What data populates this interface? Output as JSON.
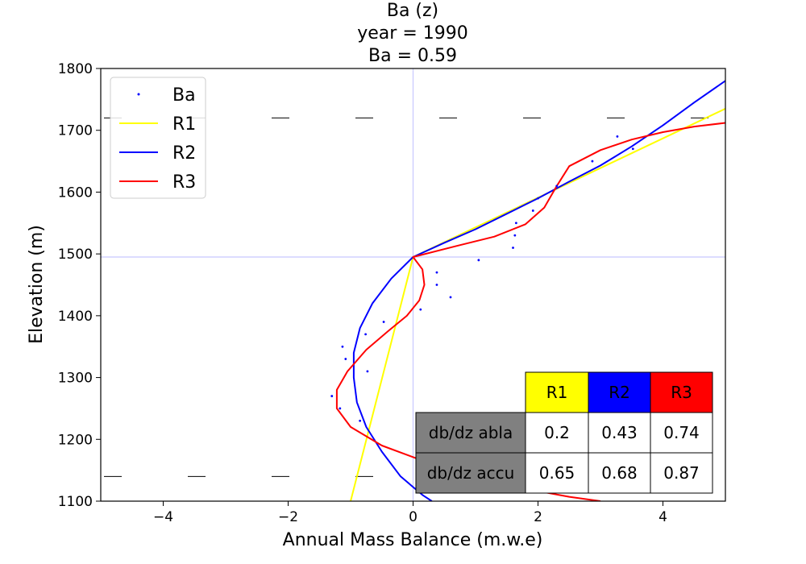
{
  "chart_data": {
    "type": "line",
    "title_lines": [
      "Ba (z)",
      "year = 1990",
      "Ba = 0.59"
    ],
    "xlabel": "Annual Mass Balance (m.w.e)",
    "ylabel": "Elevation (m)",
    "xlim": [
      -5,
      5
    ],
    "ylim": [
      1100,
      1800
    ],
    "xticks": [
      -4,
      -2,
      0,
      2,
      4
    ],
    "xtick_labels": [
      "−4",
      "−2",
      "0",
      "2",
      "4"
    ],
    "yticks": [
      1100,
      1200,
      1300,
      1400,
      1500,
      1600,
      1700,
      1800
    ],
    "ytick_labels": [
      "1100",
      "1200",
      "1300",
      "1400",
      "1500",
      "1600",
      "1700",
      "1800"
    ],
    "ela": 1495,
    "reference_lines": {
      "x": 0,
      "y": 1495,
      "color": "#c8c8ff"
    },
    "dashed_levels": [
      1720,
      1140
    ],
    "legend": {
      "position": "top-left",
      "entries": [
        "Ba",
        "R1",
        "R2",
        "R3"
      ]
    },
    "series": [
      {
        "name": "Ba",
        "kind": "points",
        "color": "#0000ff",
        "points": [
          [
            3.27,
            1690
          ],
          [
            3.52,
            1670
          ],
          [
            2.87,
            1650
          ],
          [
            2.3,
            1610
          ],
          [
            2.0,
            1590
          ],
          [
            1.92,
            1570
          ],
          [
            1.65,
            1550
          ],
          [
            1.63,
            1530
          ],
          [
            1.6,
            1510
          ],
          [
            1.05,
            1490
          ],
          [
            0.38,
            1470
          ],
          [
            0.38,
            1450
          ],
          [
            0.6,
            1430
          ],
          [
            0.12,
            1410
          ],
          [
            -0.47,
            1390
          ],
          [
            -0.76,
            1370
          ],
          [
            -1.13,
            1350
          ],
          [
            -1.08,
            1330
          ],
          [
            -0.73,
            1310
          ],
          [
            -1.3,
            1270
          ],
          [
            -1.17,
            1250
          ],
          [
            -0.85,
            1230
          ],
          [
            0.1,
            1170
          ]
        ]
      },
      {
        "name": "R1",
        "kind": "line",
        "color": "#ffff00",
        "points": [
          [
            -1.0,
            1100
          ],
          [
            0,
            1495
          ],
          [
            5.0,
            1735
          ]
        ]
      },
      {
        "name": "R2",
        "kind": "line",
        "color": "#0000ff",
        "points": [
          [
            5.0,
            1780
          ],
          [
            4.5,
            1745
          ],
          [
            4.0,
            1708
          ],
          [
            3.5,
            1674
          ],
          [
            3.0,
            1643
          ],
          [
            2.5,
            1617
          ],
          [
            2.0,
            1590
          ],
          [
            1.5,
            1565
          ],
          [
            1.0,
            1540
          ],
          [
            0.5,
            1518
          ],
          [
            0.0,
            1495
          ],
          [
            -0.35,
            1460
          ],
          [
            -0.65,
            1420
          ],
          [
            -0.85,
            1380
          ],
          [
            -0.95,
            1340
          ],
          [
            -0.95,
            1300
          ],
          [
            -0.9,
            1260
          ],
          [
            -0.75,
            1220
          ],
          [
            -0.5,
            1180
          ],
          [
            -0.2,
            1140
          ],
          [
            0.15,
            1110
          ],
          [
            0.3,
            1100
          ]
        ]
      },
      {
        "name": "R3",
        "kind": "line",
        "color": "#ff0000",
        "points": [
          [
            5.0,
            1712
          ],
          [
            4.5,
            1706
          ],
          [
            4.0,
            1697
          ],
          [
            3.5,
            1685
          ],
          [
            3.0,
            1668
          ],
          [
            2.5,
            1642
          ],
          [
            2.3,
            1610
          ],
          [
            2.1,
            1575
          ],
          [
            1.8,
            1548
          ],
          [
            1.3,
            1528
          ],
          [
            0.7,
            1513
          ],
          [
            0.0,
            1495
          ],
          [
            0.15,
            1475
          ],
          [
            0.18,
            1450
          ],
          [
            0.1,
            1425
          ],
          [
            -0.1,
            1400
          ],
          [
            -0.4,
            1375
          ],
          [
            -0.75,
            1345
          ],
          [
            -1.05,
            1310
          ],
          [
            -1.22,
            1280
          ],
          [
            -1.22,
            1250
          ],
          [
            -1.0,
            1220
          ],
          [
            -0.5,
            1190
          ],
          [
            0.3,
            1160
          ],
          [
            1.0,
            1140
          ],
          [
            1.8,
            1120
          ],
          [
            2.5,
            1107
          ],
          [
            3.0,
            1100
          ]
        ]
      }
    ],
    "table": {
      "col_headers": [
        "R1",
        "R2",
        "R3"
      ],
      "col_colors": [
        "#ffff00",
        "#0000ff",
        "#ff0000"
      ],
      "row_header_color": "#808080",
      "rows": [
        {
          "label": "db/dz abla",
          "values": [
            "0.2",
            "0.43",
            "0.74"
          ]
        },
        {
          "label": "db/dz accu",
          "values": [
            "0.65",
            "0.68",
            "0.87"
          ]
        }
      ]
    }
  }
}
